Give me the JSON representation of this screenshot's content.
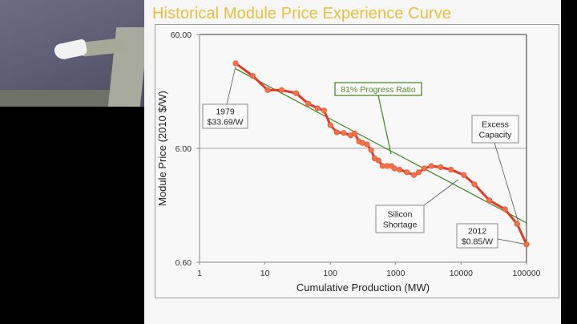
{
  "slide": {
    "title": "Historical Module Price Experience Curve"
  },
  "video": {
    "description_icon": "presenter-video"
  },
  "colors": {
    "title": "#e7bf3c",
    "data_line": "#e03c25",
    "data_marker": "#f2734a",
    "fit_line": "#4f8a2d"
  },
  "chart_data": {
    "type": "line",
    "title": "Historical Module Price Experience Curve",
    "xlabel": "Cumulative Production (MW)",
    "ylabel": "Module Price (2010 $/W)",
    "xscale": "log",
    "yscale": "log",
    "xlim": [
      1,
      100000
    ],
    "ylim": [
      0.6,
      60
    ],
    "x_ticks": [
      "1",
      "10",
      "100",
      "1000",
      "10000",
      "100000"
    ],
    "y_ticks": [
      "60.00",
      "6.00",
      "0.60"
    ],
    "grid": "horizontal at 6.00",
    "series": [
      {
        "name": "Module price",
        "x": [
          3.56,
          6.5,
          11.0,
          18,
          30,
          46,
          64,
          80,
          100,
          126,
          160,
          205,
          235,
          275,
          310,
          365,
          420,
          475,
          545,
          630,
          740,
          860,
          960,
          1150,
          1480,
          1900,
          2250,
          2750,
          3500,
          4850,
          7000,
          11000,
          16000,
          27000,
          47000,
          72000,
          100000
        ],
        "y": [
          33.5,
          26.0,
          19.5,
          19.5,
          18.3,
          14.8,
          13.5,
          12.9,
          9.6,
          8.3,
          8.2,
          7.8,
          8.1,
          6.9,
          6.7,
          6.5,
          5.8,
          4.9,
          4.7,
          4.2,
          4.2,
          4.2,
          4.0,
          3.9,
          3.7,
          3.5,
          3.7,
          4.0,
          4.2,
          4.1,
          3.9,
          3.5,
          2.9,
          2.1,
          1.75,
          1.3,
          0.86
        ]
      },
      {
        "name": "81% Progress Ratio",
        "x": [
          3.56,
          100000
        ],
        "y": [
          30.0,
          1.33
        ]
      }
    ],
    "annotations": [
      {
        "id": "start",
        "lines": [
          "1979",
          "$33.69/W"
        ]
      },
      {
        "id": "progress",
        "lines": [
          "81% Progress Ratio"
        ]
      },
      {
        "id": "excess",
        "lines": [
          "Excess",
          "Capacity"
        ]
      },
      {
        "id": "shortage",
        "lines": [
          "Silicon",
          "Shortage"
        ]
      },
      {
        "id": "end",
        "lines": [
          "2012",
          "$0.85/W"
        ]
      }
    ]
  }
}
